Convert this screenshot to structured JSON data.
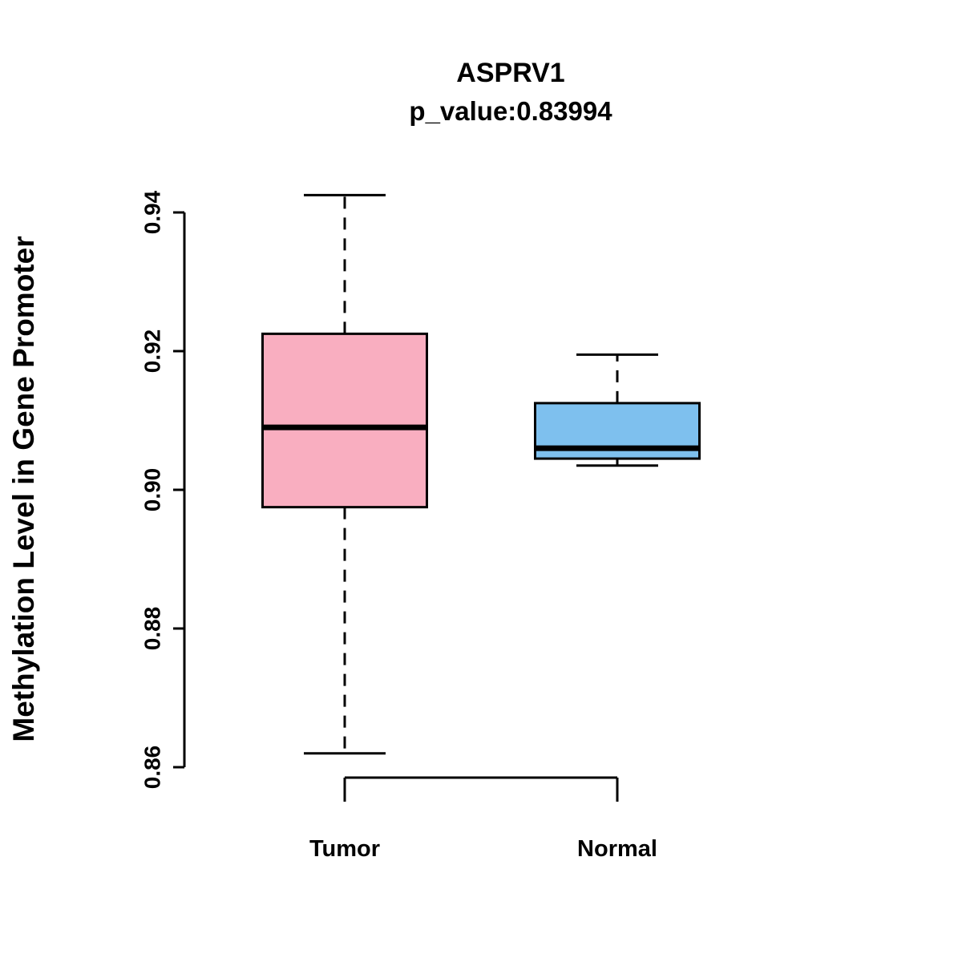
{
  "chart_data": {
    "type": "boxplot",
    "title": "ASPRV1",
    "subtitle": "p_value:0.83994",
    "ylabel": "Methylation Level in Gene Promoter",
    "xlabel": "",
    "ylim": [
      0.855,
      0.945
    ],
    "yticks": [
      "0.86",
      "0.88",
      "0.90",
      "0.92",
      "0.94"
    ],
    "grid": false,
    "legend": "none",
    "categories": [
      "Tumor",
      "Normal"
    ],
    "groups": [
      {
        "name": "Tumor",
        "color": "#F9AEC0",
        "min": 0.862,
        "q1": 0.8975,
        "median": 0.909,
        "q3": 0.9225,
        "max": 0.9425
      },
      {
        "name": "Normal",
        "color": "#7EC0EE",
        "min": 0.9035,
        "q1": 0.9045,
        "median": 0.906,
        "q3": 0.9125,
        "max": 0.9195
      }
    ]
  }
}
